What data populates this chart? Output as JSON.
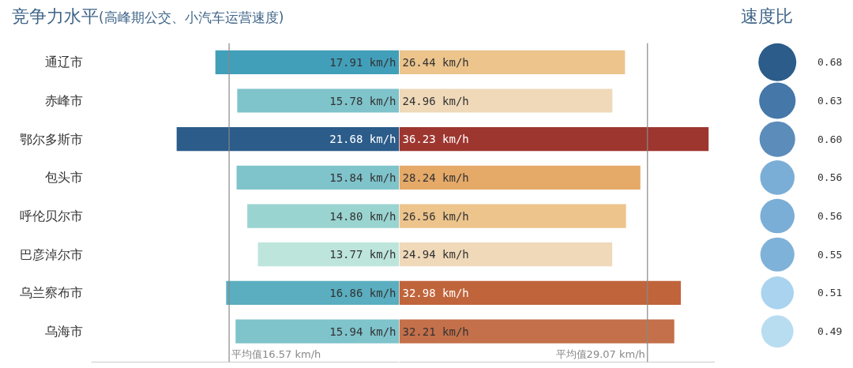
{
  "chart_data": [
    {
      "type": "bar",
      "orientation": "horizontal",
      "title": "竞争力水平",
      "subtitle": "(高峰期公交、小汽车运营速度)",
      "categories": [
        "通辽市",
        "赤峰市",
        "鄂尔多斯市",
        "包头市",
        "呼伦贝尔市",
        "巴彦淖尔市",
        "乌兰察布市",
        "乌海市"
      ],
      "values": [
        17.91,
        15.78,
        21.68,
        15.84,
        14.8,
        13.77,
        16.86,
        15.94
      ],
      "colors": [
        "#429fba",
        "#7fc3cb",
        "#2b5c8a",
        "#7fc3cb",
        "#9ad4d0",
        "#bde5dc",
        "#5aaec0",
        "#7fc3cb"
      ],
      "value_labels": [
        "17.91 km/h",
        "15.78 km/h",
        "21.68 km/h",
        "15.84 km/h",
        "14.80 km/h",
        "13.77 km/h",
        "16.86 km/h",
        "15.94 km/h"
      ],
      "xlim": [
        30,
        0
      ],
      "tick_labels": "y",
      "ref_lines": [
        {
          "axis": "x",
          "value": 16.57,
          "label": "平均值16.57 km/h"
        }
      ]
    },
    {
      "type": "bar",
      "orientation": "horizontal",
      "categories": [
        null,
        null,
        null,
        null,
        null,
        null,
        null,
        null
      ],
      "values": [
        26.44,
        24.96,
        36.23,
        28.24,
        26.56,
        24.94,
        32.98,
        32.21
      ],
      "colors": [
        "#ecc48c",
        "#efd9b9",
        "#9e3630",
        "#e5a968",
        "#ecc48c",
        "#efd9b9",
        "#c0643b",
        "#c4704a"
      ],
      "value_labels": [
        "26.44 km/h",
        "24.96 km/h",
        "36.23 km/h",
        "28.24 km/h",
        "26.56 km/h",
        "24.94 km/h",
        "32.98 km/h",
        "32.21 km/h"
      ],
      "xlim": [
        0,
        37
      ],
      "tick_labels": false,
      "ref_lines": [
        {
          "axis": "x",
          "value": 29.07,
          "label": "平均值29.07 km/h"
        }
      ]
    },
    {
      "type": "other",
      "title": "速度比",
      "categories": [
        null,
        null,
        null,
        null,
        null,
        null,
        null,
        null
      ],
      "values": [
        0.68,
        0.63,
        0.6,
        0.56,
        0.56,
        0.55,
        0.51,
        0.49
      ],
      "value_labels": [
        "0.68",
        "0.63",
        "0.60",
        "0.56",
        "0.56",
        "0.55",
        "0.51",
        "0.49"
      ],
      "colors": [
        "#2b5c8a",
        "#4577a8",
        "#5b8cba",
        "#7aaed6",
        "#7aaed6",
        "#7fb2d9",
        "#a9d3ee",
        "#b8dcf0"
      ]
    }
  ]
}
